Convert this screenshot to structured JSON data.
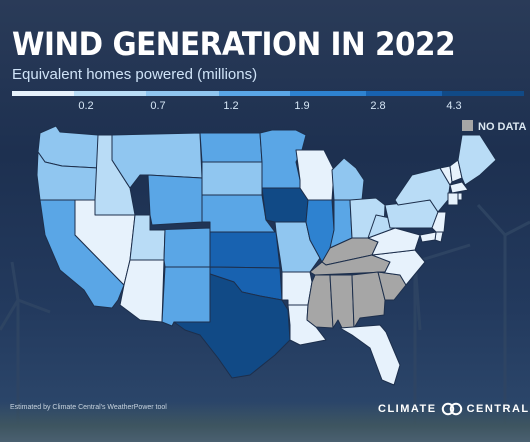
{
  "title": "WIND GENERATION IN 2022",
  "subtitle": "Equivalent homes powered (millions)",
  "legend": {
    "ticks": [
      "0.2",
      "0.7",
      "1.2",
      "1.9",
      "2.8",
      "4.3"
    ],
    "colors": [
      "#e7f2fc",
      "#b9dcf6",
      "#90c6f0",
      "#5aa6e6",
      "#2e82d0",
      "#1862b0",
      "#114a86"
    ],
    "no_data_label": "NO DATA",
    "no_data_color": "#a6a6a6"
  },
  "map": {
    "states": [
      {
        "abbr": "WA",
        "bin": 2
      },
      {
        "abbr": "OR",
        "bin": 2
      },
      {
        "abbr": "CA",
        "bin": 3
      },
      {
        "abbr": "ID",
        "bin": 1
      },
      {
        "abbr": "NV",
        "bin": 0
      },
      {
        "abbr": "UT",
        "bin": 1
      },
      {
        "abbr": "AZ",
        "bin": 0
      },
      {
        "abbr": "MT",
        "bin": 2
      },
      {
        "abbr": "WY",
        "bin": 3
      },
      {
        "abbr": "CO",
        "bin": 3
      },
      {
        "abbr": "NM",
        "bin": 3
      },
      {
        "abbr": "ND",
        "bin": 3
      },
      {
        "abbr": "SD",
        "bin": 2
      },
      {
        "abbr": "NE",
        "bin": 3
      },
      {
        "abbr": "KS",
        "bin": 5
      },
      {
        "abbr": "OK",
        "bin": 5
      },
      {
        "abbr": "TX",
        "bin": 6
      },
      {
        "abbr": "MN",
        "bin": 3
      },
      {
        "abbr": "IA",
        "bin": 6
      },
      {
        "abbr": "MO",
        "bin": 2
      },
      {
        "abbr": "AR",
        "bin": 0
      },
      {
        "abbr": "LA",
        "bin": 0
      },
      {
        "abbr": "WI",
        "bin": 0
      },
      {
        "abbr": "IL",
        "bin": 4
      },
      {
        "abbr": "MI",
        "bin": 2
      },
      {
        "abbr": "IN",
        "bin": 3
      },
      {
        "abbr": "OH",
        "bin": 1
      },
      {
        "abbr": "KY",
        "bin": -1
      },
      {
        "abbr": "TN",
        "bin": -1
      },
      {
        "abbr": "MS",
        "bin": -1
      },
      {
        "abbr": "AL",
        "bin": -1
      },
      {
        "abbr": "GA",
        "bin": -1
      },
      {
        "abbr": "SC",
        "bin": -1
      },
      {
        "abbr": "FL",
        "bin": 0
      },
      {
        "abbr": "NC",
        "bin": 0
      },
      {
        "abbr": "VA",
        "bin": 0
      },
      {
        "abbr": "WV",
        "bin": 1
      },
      {
        "abbr": "PA",
        "bin": 1
      },
      {
        "abbr": "NY",
        "bin": 1
      },
      {
        "abbr": "VT",
        "bin": 0
      },
      {
        "abbr": "NH",
        "bin": 0
      },
      {
        "abbr": "ME",
        "bin": 1
      },
      {
        "abbr": "MA",
        "bin": 0
      },
      {
        "abbr": "CT",
        "bin": 0
      },
      {
        "abbr": "RI",
        "bin": 0
      },
      {
        "abbr": "NJ",
        "bin": 0
      },
      {
        "abbr": "DE",
        "bin": 0
      },
      {
        "abbr": "MD",
        "bin": 0
      }
    ]
  },
  "footnote": "Estimated by Climate Central's WeatherPower tool",
  "logo": {
    "left": "CLIMATE",
    "right": "CENTRAL",
    "mark_icon": "linked-circles-icon"
  }
}
